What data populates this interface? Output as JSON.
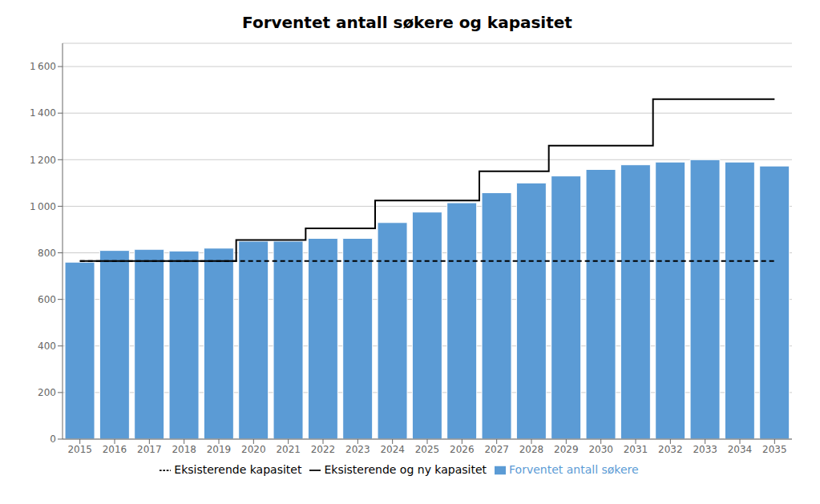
{
  "chart_data": {
    "type": "bar",
    "title": "Forventet antall søkere og kapasitet",
    "categories": [
      "2015",
      "2016",
      "2017",
      "2018",
      "2019",
      "2020",
      "2021",
      "2022",
      "2023",
      "2024",
      "2025",
      "2026",
      "2027",
      "2028",
      "2029",
      "2030",
      "2031",
      "2032",
      "2033",
      "2034",
      "2035"
    ],
    "series": [
      {
        "name": "Forventet antall søkere",
        "type": "bar",
        "color": "#5B9BD5",
        "values": [
          760,
          810,
          815,
          808,
          820,
          850,
          850,
          862,
          862,
          930,
          975,
          1015,
          1058,
          1100,
          1130,
          1158,
          1178,
          1190,
          1200,
          1190,
          1173
        ]
      },
      {
        "name": "Eksisterende kapasitet",
        "type": "line",
        "color": "#000000",
        "line_style": "dashed",
        "values": [
          765,
          765,
          765,
          765,
          765,
          765,
          765,
          765,
          765,
          765,
          765,
          765,
          765,
          765,
          765,
          765,
          765,
          765,
          765,
          765,
          765
        ]
      },
      {
        "name": "Eksisterende og ny kapasitet",
        "type": "line",
        "color": "#000000",
        "line_style": "step",
        "values": [
          765,
          765,
          765,
          765,
          765,
          855,
          855,
          905,
          905,
          1025,
          1025,
          1025,
          1150,
          1150,
          1260,
          1260,
          1260,
          1460,
          1460,
          1460,
          1460
        ]
      }
    ],
    "ylim": [
      0,
      1700
    ],
    "yticks": [
      0,
      200,
      400,
      600,
      800,
      {
        "value": 1000,
        "label": "1 000"
      },
      {
        "value": 1200,
        "label": "1 200"
      },
      {
        "value": 1400,
        "label": "1 400"
      },
      {
        "value": 1600,
        "label": "1 600"
      }
    ],
    "grid": true,
    "legend": "bottom"
  }
}
